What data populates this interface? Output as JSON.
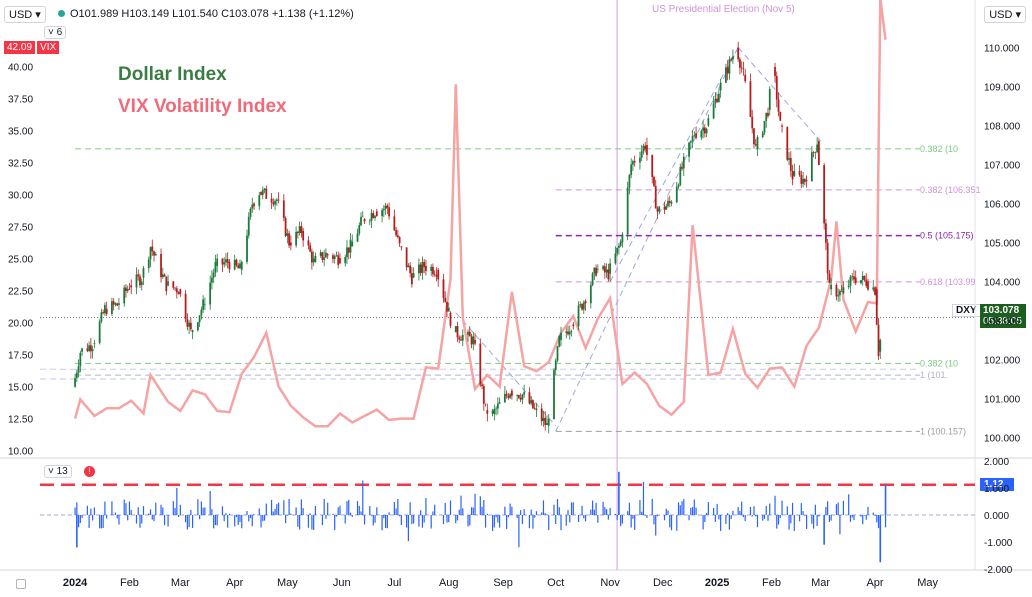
{
  "header": {
    "symbol_select": "USD",
    "currency_select": "USD",
    "ohlc_text": "O101.989 H103.149 L101.540 C103.078 +1.138 (+1.12%)",
    "indicator_length": "6",
    "volume_length": "13"
  },
  "chart_data": {
    "type": "line",
    "title": "",
    "annotations": {
      "dollar_label": "Dollar Index",
      "vix_label": "VIX Volatility Index",
      "event": "US Presidential Election (Nov 5)",
      "dxy_tag": "DXY",
      "dxy_value": "103.078",
      "dxy_countdown": "05:38:05",
      "vix_tag_value": "42.09",
      "vix_tag_name": "VIX",
      "change_tag": "1.12"
    },
    "x_axis": {
      "ticks": [
        "2024",
        "Feb",
        "Mar",
        "Apr",
        "May",
        "Jun",
        "Jul",
        "Aug",
        "Sep",
        "Oct",
        "Nov",
        "Dec",
        "2025",
        "Feb",
        "Mar",
        "Apr",
        "May"
      ]
    },
    "right_axis": {
      "ticks": [
        "110.000",
        "109.000",
        "108.000",
        "107.000",
        "106.000",
        "105.000",
        "104.000",
        "103.000",
        "102.000",
        "101.000",
        "100.000"
      ],
      "range": [
        99.5,
        110.5
      ]
    },
    "left_axis": {
      "ticks": [
        "40.00",
        "37.50",
        "35.00",
        "32.50",
        "30.00",
        "27.50",
        "25.00",
        "22.50",
        "20.00",
        "17.50",
        "15.00",
        "12.50",
        "10.00"
      ],
      "range": [
        9.5,
        43
      ]
    },
    "lower_axis": {
      "ticks": [
        "2.000",
        "1.000",
        "0.000",
        "-1.000",
        "-2.000"
      ]
    },
    "fib_levels": [
      {
        "label": "0.382 (10",
        "color": "#81c784"
      },
      {
        "label": "0.382 (106.351",
        "color": "#ce93d8"
      },
      {
        "label": "0.5 (105.175)",
        "color": "#8e24aa"
      },
      {
        "label": "0.618 (103.99",
        "color": "#ce93d8"
      },
      {
        "label": "0.382 (10",
        "color": "#81c784"
      },
      {
        "label": "1 (100.157)",
        "color": "#9e9e9e"
      },
      {
        "label": "1 (101.",
        "color": "#b0b0d0"
      }
    ],
    "series": [
      {
        "name": "Dollar Index",
        "axis": "right",
        "color": "#2e7d32",
        "points": [
          [
            "2024-01-01",
            101.3
          ],
          [
            "2024-01-05",
            102.2
          ],
          [
            "2024-01-12",
            102.4
          ],
          [
            "2024-01-19",
            103.3
          ],
          [
            "2024-01-26",
            103.4
          ],
          [
            "2024-02-02",
            103.9
          ],
          [
            "2024-02-09",
            104.1
          ],
          [
            "2024-02-14",
            104.9
          ],
          [
            "2024-02-23",
            103.9
          ],
          [
            "2024-03-01",
            103.8
          ],
          [
            "2024-03-08",
            102.7
          ],
          [
            "2024-03-15",
            103.4
          ],
          [
            "2024-03-22",
            104.4
          ],
          [
            "2024-03-29",
            104.5
          ],
          [
            "2024-04-05",
            104.3
          ],
          [
            "2024-04-12",
            106.0
          ],
          [
            "2024-04-16",
            106.3
          ],
          [
            "2024-04-26",
            106.1
          ],
          [
            "2024-05-03",
            105.0
          ],
          [
            "2024-05-10",
            105.3
          ],
          [
            "2024-05-17",
            104.5
          ],
          [
            "2024-05-24",
            104.7
          ],
          [
            "2024-05-31",
            104.6
          ],
          [
            "2024-06-07",
            104.9
          ],
          [
            "2024-06-14",
            105.6
          ],
          [
            "2024-06-21",
            105.8
          ],
          [
            "2024-06-28",
            105.9
          ],
          [
            "2024-07-05",
            104.9
          ],
          [
            "2024-07-12",
            104.1
          ],
          [
            "2024-07-19",
            104.4
          ],
          [
            "2024-07-26",
            104.3
          ],
          [
            "2024-08-02",
            103.2
          ],
          [
            "2024-08-05",
            102.7
          ],
          [
            "2024-08-16",
            102.5
          ],
          [
            "2024-08-23",
            100.7
          ],
          [
            "2024-08-27",
            100.6
          ],
          [
            "2024-09-06",
            101.2
          ],
          [
            "2024-09-13",
            101.1
          ],
          [
            "2024-09-20",
            100.7
          ],
          [
            "2024-09-27",
            100.3
          ],
          [
            "2024-10-04",
            102.5
          ],
          [
            "2024-10-11",
            102.9
          ],
          [
            "2024-10-18",
            103.5
          ],
          [
            "2024-10-25",
            104.3
          ],
          [
            "2024-11-01",
            104.2
          ],
          [
            "2024-11-08",
            105.0
          ],
          [
            "2024-11-14",
            107.0
          ],
          [
            "2024-11-22",
            107.5
          ],
          [
            "2024-11-29",
            105.8
          ],
          [
            "2024-12-06",
            106.0
          ],
          [
            "2024-12-13",
            106.9
          ],
          [
            "2024-12-20",
            107.8
          ],
          [
            "2024-12-27",
            108.0
          ],
          [
            "2025-01-03",
            108.9
          ],
          [
            "2025-01-10",
            109.7
          ],
          [
            "2025-01-13",
            110.0
          ],
          [
            "2025-01-17",
            109.3
          ],
          [
            "2025-01-24",
            107.4
          ],
          [
            "2025-01-31",
            108.4
          ],
          [
            "2025-02-03",
            109.5
          ],
          [
            "2025-02-07",
            108.0
          ],
          [
            "2025-02-14",
            106.7
          ],
          [
            "2025-02-21",
            106.6
          ],
          [
            "2025-02-28",
            107.6
          ],
          [
            "2025-03-07",
            103.8
          ],
          [
            "2025-03-14",
            103.7
          ],
          [
            "2025-03-21",
            104.1
          ],
          [
            "2025-03-28",
            104.0
          ],
          [
            "2025-04-02",
            103.8
          ],
          [
            "2025-04-04",
            102.2
          ],
          [
            "2025-04-07",
            103.08
          ]
        ]
      },
      {
        "name": "VIX Volatility Index",
        "axis": "left",
        "color": "#f5a3a3",
        "points": [
          [
            "2024-01-01",
            12.5
          ],
          [
            "2024-01-04",
            14.0
          ],
          [
            "2024-01-12",
            12.7
          ],
          [
            "2024-01-19",
            13.3
          ],
          [
            "2024-01-26",
            13.3
          ],
          [
            "2024-02-02",
            13.9
          ],
          [
            "2024-02-09",
            12.9
          ],
          [
            "2024-02-13",
            15.9
          ],
          [
            "2024-02-23",
            13.8
          ],
          [
            "2024-03-01",
            13.1
          ],
          [
            "2024-03-08",
            14.7
          ],
          [
            "2024-03-15",
            14.4
          ],
          [
            "2024-03-22",
            13.1
          ],
          [
            "2024-03-29",
            13.0
          ],
          [
            "2024-04-05",
            16.0
          ],
          [
            "2024-04-12",
            17.3
          ],
          [
            "2024-04-19",
            19.2
          ],
          [
            "2024-04-26",
            15.0
          ],
          [
            "2024-05-03",
            13.5
          ],
          [
            "2024-05-10",
            12.6
          ],
          [
            "2024-05-17",
            11.9
          ],
          [
            "2024-05-24",
            11.9
          ],
          [
            "2024-05-31",
            12.9
          ],
          [
            "2024-06-07",
            12.2
          ],
          [
            "2024-06-14",
            12.7
          ],
          [
            "2024-06-21",
            13.2
          ],
          [
            "2024-06-28",
            12.4
          ],
          [
            "2024-07-05",
            12.5
          ],
          [
            "2024-07-12",
            12.5
          ],
          [
            "2024-07-19",
            16.5
          ],
          [
            "2024-07-26",
            16.4
          ],
          [
            "2024-08-02",
            23.4
          ],
          [
            "2024-08-05",
            38.6
          ],
          [
            "2024-08-09",
            20.4
          ],
          [
            "2024-08-16",
            14.8
          ],
          [
            "2024-08-23",
            15.9
          ],
          [
            "2024-08-30",
            15.0
          ],
          [
            "2024-09-06",
            22.4
          ],
          [
            "2024-09-13",
            16.6
          ],
          [
            "2024-09-20",
            16.2
          ],
          [
            "2024-09-27",
            16.9
          ],
          [
            "2024-10-04",
            19.2
          ],
          [
            "2024-10-11",
            20.5
          ],
          [
            "2024-10-18",
            18.0
          ],
          [
            "2024-10-25",
            20.3
          ],
          [
            "2024-11-01",
            21.9
          ],
          [
            "2024-11-08",
            15.2
          ],
          [
            "2024-11-15",
            16.1
          ],
          [
            "2024-11-22",
            15.2
          ],
          [
            "2024-11-29",
            13.5
          ],
          [
            "2024-12-06",
            12.8
          ],
          [
            "2024-12-13",
            13.8
          ],
          [
            "2024-12-18",
            27.6
          ],
          [
            "2024-12-27",
            15.9
          ],
          [
            "2025-01-03",
            16.1
          ],
          [
            "2025-01-10",
            19.5
          ],
          [
            "2025-01-17",
            16.0
          ],
          [
            "2025-01-24",
            14.9
          ],
          [
            "2025-01-31",
            16.4
          ],
          [
            "2025-02-07",
            16.5
          ],
          [
            "2025-02-14",
            15.0
          ],
          [
            "2025-02-21",
            18.2
          ],
          [
            "2025-02-28",
            19.6
          ],
          [
            "2025-03-07",
            23.4
          ],
          [
            "2025-03-10",
            27.9
          ],
          [
            "2025-03-14",
            21.8
          ],
          [
            "2025-03-21",
            19.3
          ],
          [
            "2025-03-28",
            21.6
          ],
          [
            "2025-04-02",
            21.5
          ],
          [
            "2025-04-04",
            45.3
          ],
          [
            "2025-04-07",
            42.09
          ]
        ]
      },
      {
        "name": "",
        "axis": "lower",
        "type": "bar",
        "color": "#2962ff",
        "note": "daily % change histogram, last value 1.12"
      }
    ]
  }
}
